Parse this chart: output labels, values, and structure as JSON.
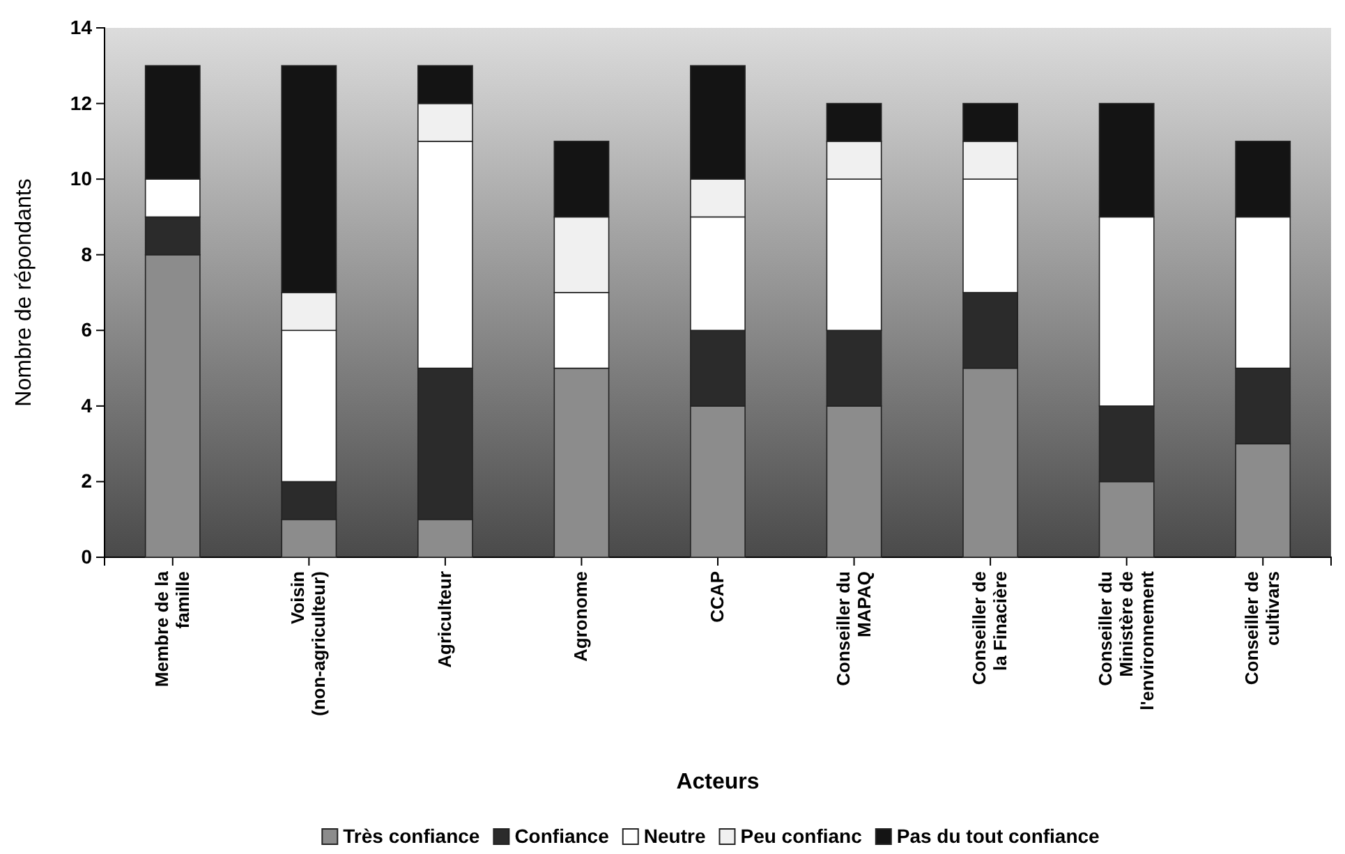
{
  "chart_data": {
    "type": "bar",
    "stacked": true,
    "xlabel": "Acteurs",
    "ylabel": "Nombre de répondants",
    "categories": [
      "Membre de la famille",
      "Voisin (non-agriculteur)",
      "Agriculteur",
      "Agronome",
      "CCAP",
      "Conseiller du MAPAQ",
      "Conseiller de la Finacière",
      "Conseiller du Ministère de l'environnement",
      "Conseiller de cultivars"
    ],
    "series": [
      {
        "name": "Très confiance",
        "color": "#8c8c8c",
        "values": [
          8,
          1,
          1,
          5,
          4,
          4,
          5,
          2,
          3
        ]
      },
      {
        "name": "Confiance",
        "color": "#2b2b2b",
        "values": [
          1,
          1,
          4,
          0,
          2,
          2,
          2,
          2,
          2
        ]
      },
      {
        "name": "Neutre",
        "color": "#ffffff",
        "values": [
          1,
          4,
          6,
          2,
          3,
          4,
          3,
          5,
          4
        ]
      },
      {
        "name": "Peu confianc",
        "color": "#f0f0f0",
        "values": [
          0,
          1,
          1,
          2,
          1,
          1,
          1,
          0,
          0
        ]
      },
      {
        "name": "Pas du tout confiance",
        "color": "#141414",
        "values": [
          3,
          6,
          1,
          2,
          3,
          1,
          1,
          3,
          2
        ]
      }
    ],
    "ylim": [
      0,
      14
    ],
    "yticks": [
      0,
      2,
      4,
      6,
      8,
      10,
      12,
      14
    ],
    "grid": false,
    "legend": "bottom"
  }
}
